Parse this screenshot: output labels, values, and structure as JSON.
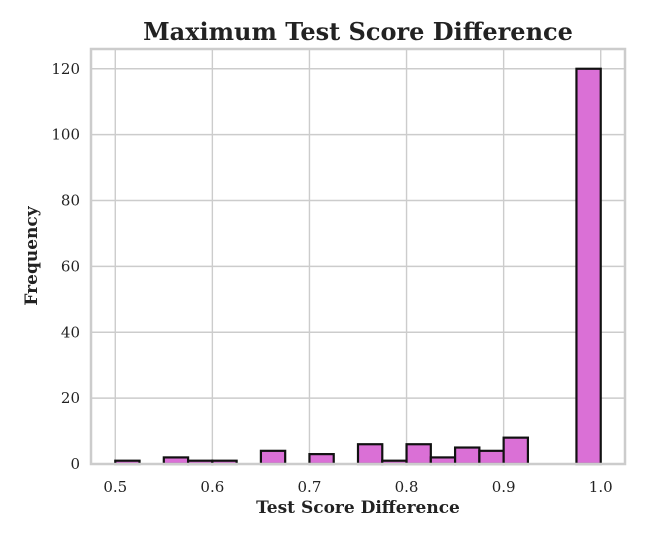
{
  "chart_data": {
    "type": "bar",
    "subtype": "histogram",
    "title": "Maximum Test Score Difference",
    "xlabel": "Test Score Difference",
    "ylabel": "Frequency",
    "xlim": [
      0.475,
      1.025
    ],
    "ylim": [
      0,
      126
    ],
    "grid": true,
    "bar_color": "#da70d6",
    "edge_color": "#111111",
    "x_ticks": [
      {
        "value": 0.5,
        "label": "0.5"
      },
      {
        "value": 0.6,
        "label": "0.6"
      },
      {
        "value": 0.7,
        "label": "0.7"
      },
      {
        "value": 0.8,
        "label": "0.8"
      },
      {
        "value": 0.9,
        "label": "0.9"
      },
      {
        "value": 1.0,
        "label": "1.0"
      }
    ],
    "y_ticks": [
      {
        "value": 0,
        "label": "0"
      },
      {
        "value": 20,
        "label": "20"
      },
      {
        "value": 40,
        "label": "40"
      },
      {
        "value": 60,
        "label": "60"
      },
      {
        "value": 80,
        "label": "80"
      },
      {
        "value": 100,
        "label": "100"
      },
      {
        "value": 120,
        "label": "120"
      }
    ],
    "bins": [
      {
        "x0": 0.5,
        "x1": 0.525,
        "count": 1
      },
      {
        "x0": 0.525,
        "x1": 0.55,
        "count": 0
      },
      {
        "x0": 0.55,
        "x1": 0.575,
        "count": 2
      },
      {
        "x0": 0.575,
        "x1": 0.6,
        "count": 1
      },
      {
        "x0": 0.6,
        "x1": 0.625,
        "count": 1
      },
      {
        "x0": 0.625,
        "x1": 0.65,
        "count": 0
      },
      {
        "x0": 0.65,
        "x1": 0.675,
        "count": 4
      },
      {
        "x0": 0.675,
        "x1": 0.7,
        "count": 0
      },
      {
        "x0": 0.7,
        "x1": 0.725,
        "count": 3
      },
      {
        "x0": 0.725,
        "x1": 0.75,
        "count": 0
      },
      {
        "x0": 0.75,
        "x1": 0.775,
        "count": 6
      },
      {
        "x0": 0.775,
        "x1": 0.8,
        "count": 1
      },
      {
        "x0": 0.8,
        "x1": 0.825,
        "count": 6
      },
      {
        "x0": 0.825,
        "x1": 0.85,
        "count": 2
      },
      {
        "x0": 0.85,
        "x1": 0.875,
        "count": 5
      },
      {
        "x0": 0.875,
        "x1": 0.9,
        "count": 4
      },
      {
        "x0": 0.9,
        "x1": 0.925,
        "count": 8
      },
      {
        "x0": 0.925,
        "x1": 0.95,
        "count": 0
      },
      {
        "x0": 0.95,
        "x1": 0.975,
        "count": 0
      },
      {
        "x0": 0.975,
        "x1": 1.0,
        "count": 120
      }
    ]
  }
}
